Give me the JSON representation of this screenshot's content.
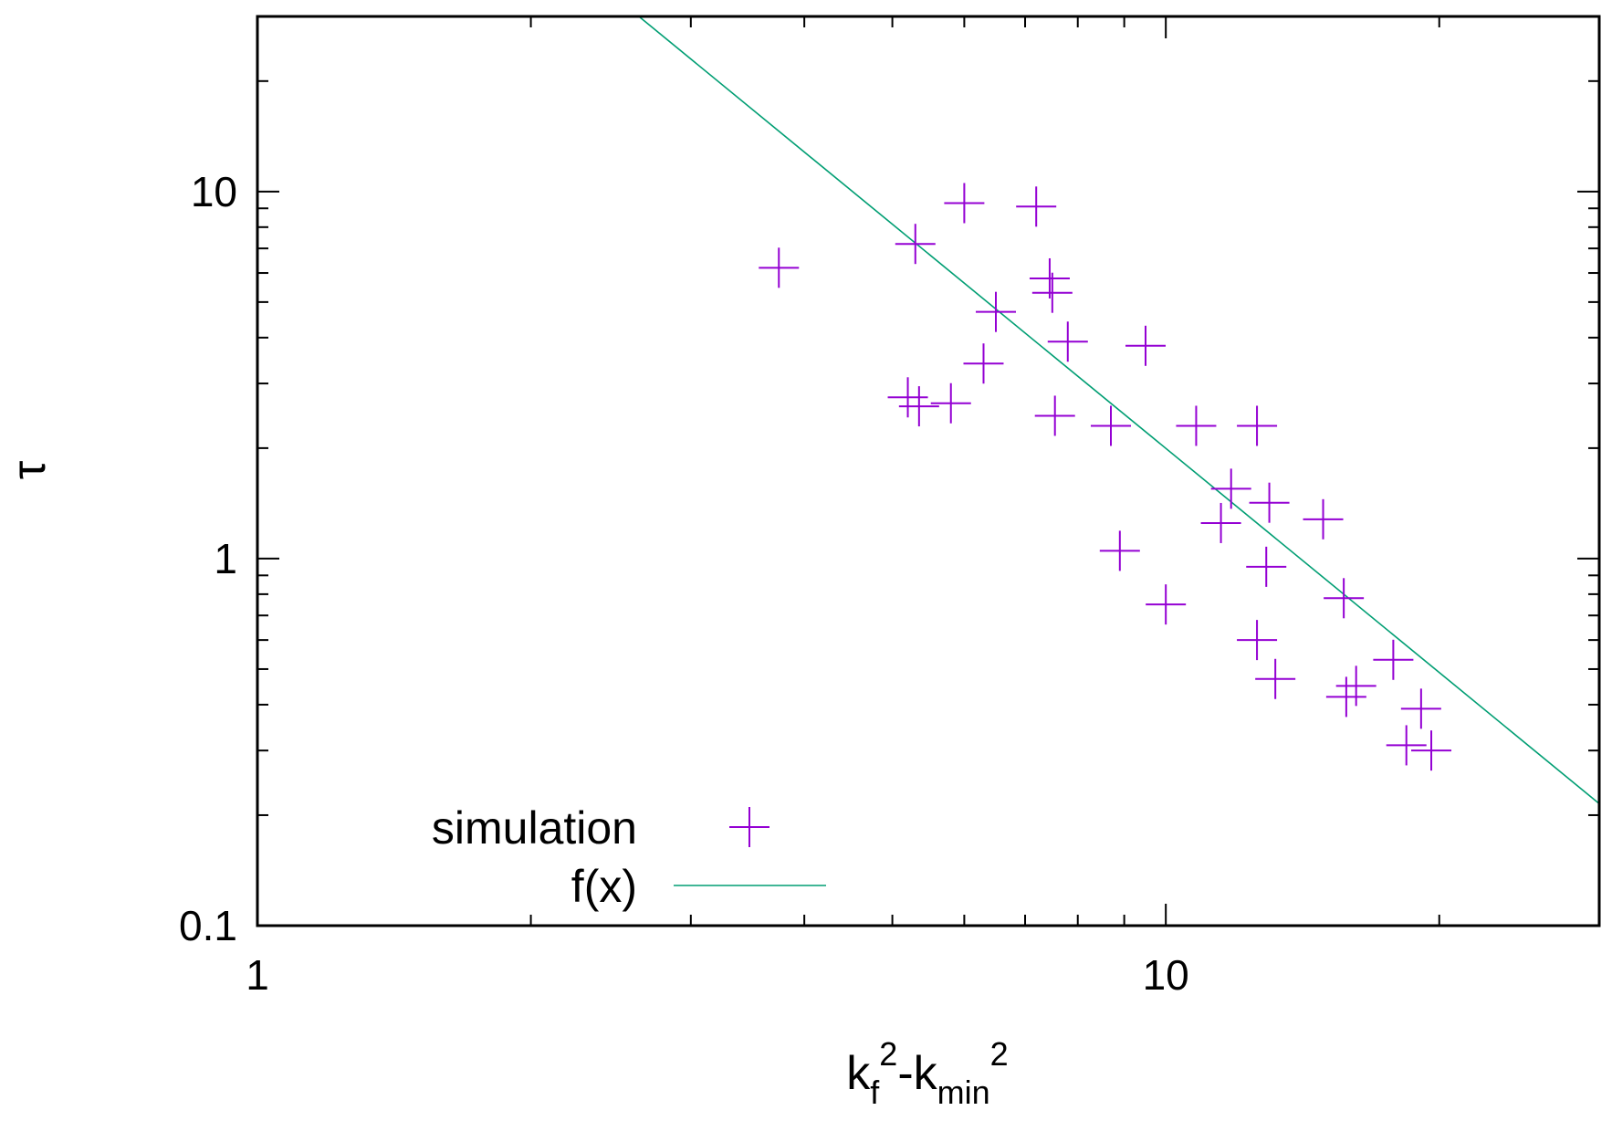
{
  "chart_data": {
    "type": "scatter",
    "xscale": "log",
    "yscale": "log",
    "xlim": [
      1,
      30
    ],
    "ylim": [
      0.1,
      30
    ],
    "xticks": [
      {
        "value": 1,
        "label": "1"
      },
      {
        "value": 10,
        "label": "10"
      }
    ],
    "yticks": [
      {
        "value": 0.1,
        "label": "0.1"
      },
      {
        "value": 1,
        "label": "1"
      },
      {
        "value": 10,
        "label": "10"
      }
    ],
    "xlabel": {
      "k": "k",
      "f": "f",
      "sq": "2",
      "dash": "-",
      "min": "min"
    },
    "ylabel": "τ",
    "legend_position": "bottom-left",
    "series": [
      {
        "name": "simulation",
        "kind": "points",
        "marker": "plus",
        "color": "#9400d3",
        "points": [
          [
            3.75,
            6.2
          ],
          [
            5.3,
            7.2
          ],
          [
            5.2,
            2.75
          ],
          [
            5.35,
            2.6
          ],
          [
            5.8,
            2.65
          ],
          [
            6.0,
            9.3
          ],
          [
            6.3,
            3.4
          ],
          [
            6.5,
            4.7
          ],
          [
            7.2,
            9.1
          ],
          [
            7.45,
            5.8
          ],
          [
            7.5,
            5.3
          ],
          [
            7.55,
            2.45
          ],
          [
            7.8,
            3.9
          ],
          [
            8.7,
            2.3
          ],
          [
            8.9,
            1.05
          ],
          [
            9.5,
            3.8
          ],
          [
            10.0,
            0.75
          ],
          [
            10.8,
            2.3
          ],
          [
            11.5,
            1.25
          ],
          [
            11.8,
            1.55
          ],
          [
            12.6,
            2.3
          ],
          [
            12.6,
            0.6
          ],
          [
            12.9,
            0.95
          ],
          [
            13.0,
            1.42
          ],
          [
            13.2,
            0.47
          ],
          [
            14.9,
            1.28
          ],
          [
            15.7,
            0.78
          ],
          [
            15.8,
            0.42
          ],
          [
            16.2,
            0.45
          ],
          [
            17.8,
            0.53
          ],
          [
            18.4,
            0.31
          ],
          [
            19.1,
            0.39
          ],
          [
            19.6,
            0.3
          ]
        ]
      },
      {
        "name": "f(x)",
        "kind": "line",
        "color": "#009e73",
        "points": [
          [
            2.63,
            30
          ],
          [
            30,
            0.215
          ]
        ]
      }
    ]
  }
}
